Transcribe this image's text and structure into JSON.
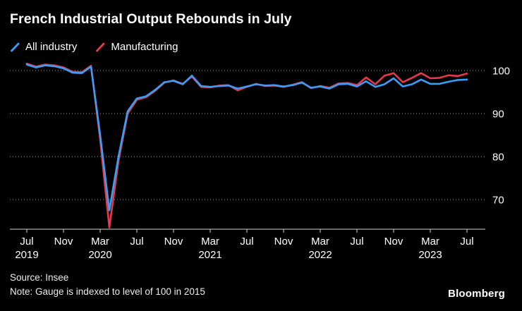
{
  "title": "French Industrial Output Rebounds in July",
  "footer": {
    "source": "Source: Insee",
    "note": "Note: Gauge is indexed to level of 100 in 2015",
    "logo": "Bloomberg"
  },
  "chart_data": {
    "type": "line",
    "title": "French Industrial Output Rebounds in July",
    "x_unit": "month",
    "x_range": [
      "2019-07",
      "2023-07"
    ],
    "ylim": [
      63,
      102.5
    ],
    "yticks": [
      70,
      80,
      90,
      100
    ],
    "grid": "horizontal-dotted",
    "legend_position": "top-left",
    "x_ticks": [
      {
        "label": "Jul",
        "year": "2019",
        "index": 0
      },
      {
        "label": "Nov",
        "index": 4
      },
      {
        "label": "Mar",
        "year": "2020",
        "index": 8
      },
      {
        "label": "Jul",
        "index": 12
      },
      {
        "label": "Nov",
        "index": 16
      },
      {
        "label": "Mar",
        "year": "2021",
        "index": 20
      },
      {
        "label": "Jul",
        "index": 24
      },
      {
        "label": "Nov",
        "index": 28
      },
      {
        "label": "Mar",
        "year": "2022",
        "index": 32
      },
      {
        "label": "Jul",
        "index": 36
      },
      {
        "label": "Nov",
        "index": 40
      },
      {
        "label": "Mar",
        "year": "2023",
        "index": 44
      },
      {
        "label": "Jul",
        "index": 48
      }
    ],
    "series": [
      {
        "name": "All industry",
        "color": "#3b9df8",
        "values": [
          101.4,
          100.7,
          101.2,
          101.0,
          100.5,
          99.5,
          99.4,
          100.9,
          85.0,
          67.5,
          80.0,
          90.5,
          93.5,
          94.0,
          95.5,
          97.3,
          97.6,
          96.8,
          98.8,
          96.4,
          96.2,
          96.4,
          96.5,
          95.8,
          96.3,
          96.8,
          96.5,
          96.6,
          96.3,
          96.6,
          97.2,
          96.0,
          96.3,
          95.8,
          96.8,
          96.9,
          96.3,
          97.5,
          96.2,
          96.8,
          98.2,
          96.3,
          96.8,
          97.9,
          96.9,
          96.9,
          97.4,
          97.8,
          97.9
        ]
      },
      {
        "name": "Manufacturing",
        "color": "#e8384a",
        "values": [
          101.6,
          100.9,
          101.4,
          101.2,
          100.7,
          99.7,
          99.6,
          101.1,
          84.0,
          63.5,
          79.0,
          90.0,
          93.2,
          93.8,
          95.3,
          97.2,
          97.7,
          96.9,
          98.6,
          96.2,
          96.1,
          96.5,
          96.6,
          95.4,
          96.2,
          96.9,
          96.4,
          96.5,
          96.2,
          96.7,
          97.3,
          95.9,
          96.4,
          96.0,
          97.0,
          97.1,
          96.6,
          98.4,
          96.8,
          98.8,
          99.4,
          97.3,
          98.3,
          99.4,
          98.2,
          98.3,
          98.9,
          98.7,
          99.3
        ]
      }
    ]
  }
}
